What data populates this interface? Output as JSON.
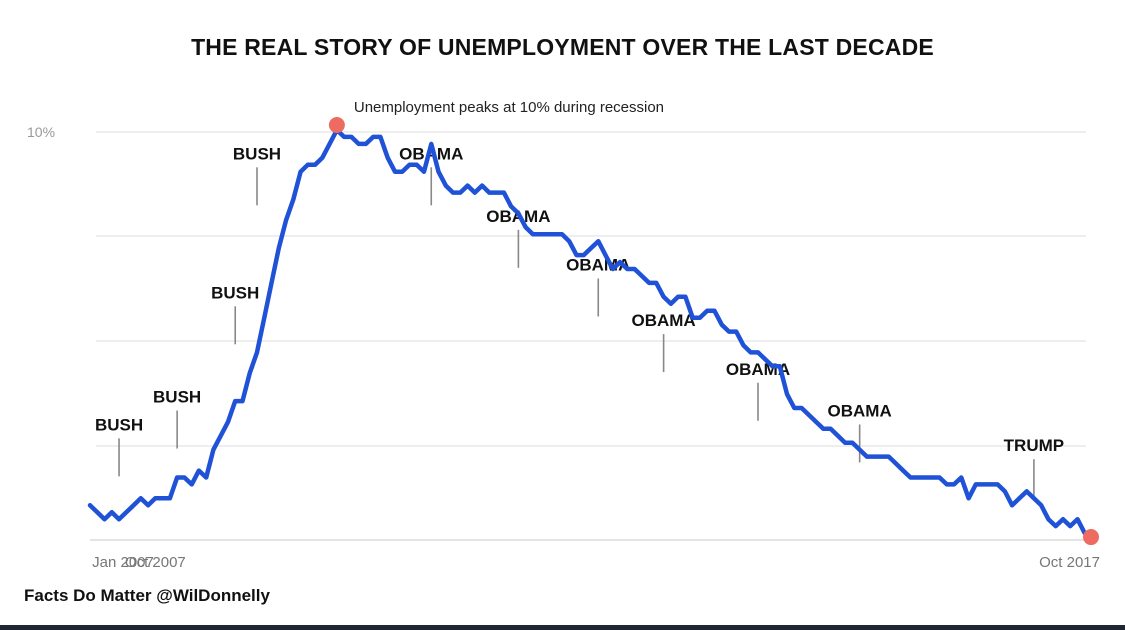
{
  "chart_data": {
    "type": "line",
    "title": "THE REAL STORY OF UNEMPLOYMENT OVER THE LAST DECADE",
    "xlabel": "",
    "ylabel": "",
    "x_range": [
      "Jan 2007",
      "Oct 2017"
    ],
    "x_ticks": [
      "Jan 2007",
      "Oct 2007",
      "Oct 2017"
    ],
    "y_ticks": [
      "10%"
    ],
    "ylim": [
      4,
      10
    ],
    "grid": true,
    "series": [
      {
        "values": [
          4.6,
          4.5,
          4.4,
          4.5,
          4.4,
          4.5,
          4.6,
          4.7,
          4.6,
          4.7,
          4.7,
          4.7,
          5.0,
          5.0,
          4.9,
          5.1,
          5.0,
          5.4,
          5.6,
          5.8,
          6.1,
          6.1,
          6.5,
          6.8,
          7.3,
          7.8,
          8.3,
          8.7,
          9.0,
          9.4,
          9.5,
          9.5,
          9.6,
          9.8,
          10.0,
          9.9,
          9.9,
          9.8,
          9.8,
          9.9,
          9.9,
          9.6,
          9.4,
          9.4,
          9.5,
          9.5,
          9.4,
          9.8,
          9.4,
          9.2,
          9.1,
          9.1,
          9.2,
          9.1,
          9.2,
          9.1,
          9.1,
          9.1,
          8.9,
          8.8,
          8.6,
          8.5,
          8.5,
          8.5,
          8.5,
          8.5,
          8.4,
          8.2,
          8.2,
          8.3,
          8.4,
          8.2,
          8.0,
          8.1,
          8.0,
          8.0,
          7.9,
          7.8,
          7.8,
          7.6,
          7.5,
          7.6,
          7.6,
          7.3,
          7.3,
          7.4,
          7.4,
          7.2,
          7.1,
          7.1,
          6.9,
          6.8,
          6.8,
          6.7,
          6.6,
          6.6,
          6.2,
          6.0,
          6.0,
          5.9,
          5.8,
          5.7,
          5.7,
          5.6,
          5.5,
          5.5,
          5.4,
          5.3,
          5.3,
          5.3,
          5.3,
          5.2,
          5.1,
          5.0,
          5.0,
          5.0,
          5.0,
          5.0,
          4.9,
          4.9,
          5.0,
          4.7,
          4.9,
          4.9,
          4.9,
          4.9,
          4.8,
          4.6,
          4.7,
          4.8,
          4.7,
          4.6,
          4.4,
          4.3,
          4.4,
          4.3,
          4.4,
          4.2,
          4.1
        ],
        "color": "#1f52d6"
      }
    ],
    "peak": {
      "value": 10.0,
      "label": "Unemployment peaks at 10% during recession"
    },
    "annotations": [
      {
        "label": "BUSH",
        "value": 4.7
      },
      {
        "label": "BUSH",
        "value": 5.1
      },
      {
        "label": "BUSH",
        "value": 6.6
      },
      {
        "label": "BUSH",
        "value": 8.6
      },
      {
        "label": "OBAMA",
        "value": 8.6
      },
      {
        "label": "OBAMA",
        "value": 7.7
      },
      {
        "label": "OBAMA",
        "value": 7.0
      },
      {
        "label": "OBAMA",
        "value": 6.2
      },
      {
        "label": "OBAMA",
        "value": 5.5
      },
      {
        "label": "OBAMA",
        "value": 4.9
      },
      {
        "label": "TRUMP",
        "value": 4.4
      }
    ],
    "highlight_color": "#ee6b62"
  },
  "credit": "Facts Do Matter @WilDonnelly"
}
